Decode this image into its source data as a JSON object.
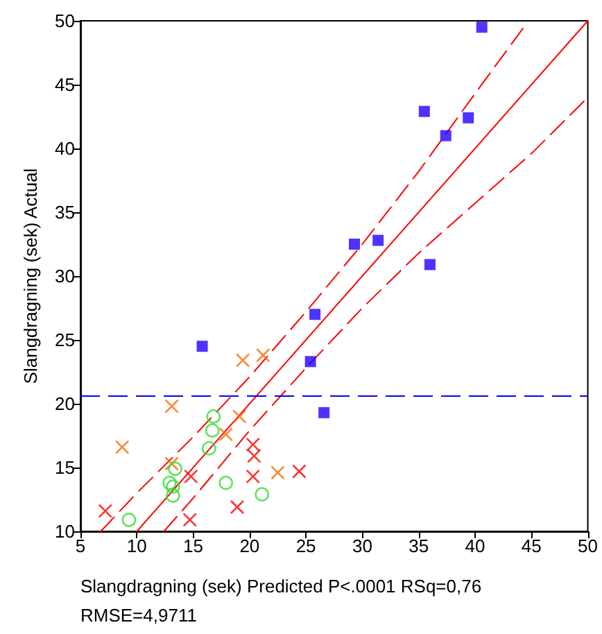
{
  "chart_data": {
    "type": "scatter",
    "xlabel": "Slangdragning (sek) Predicted P<.0001 RSq=0,76 RMSE=4,9711",
    "ylabel": "Slangdragning (sek) Actual",
    "xlim": [
      5,
      50
    ],
    "xticks": [
      5,
      10,
      15,
      20,
      25,
      30,
      35,
      40,
      45,
      50
    ],
    "ylim": [
      10,
      50
    ],
    "yticks": [
      10,
      15,
      20,
      25,
      30,
      35,
      40,
      45,
      50
    ],
    "grid": false,
    "ref_lines": [
      {
        "axis": "y",
        "value": 20.6,
        "color": "#0000ff",
        "line_style": "dashed"
      }
    ],
    "series": [
      {
        "marker": "square",
        "color": "#2200ff",
        "x": [
          40.6,
          35.5,
          39.4,
          37.4,
          29.3,
          31.4,
          36.0,
          25.8,
          25.4,
          26.6,
          15.8
        ],
        "values": [
          49.5,
          42.9,
          42.4,
          41.0,
          32.5,
          32.8,
          30.9,
          27.0,
          23.3,
          19.3,
          24.5
        ]
      },
      {
        "marker": "cross",
        "color": "#ff6600",
        "x": [
          19.4,
          21.2,
          13.1,
          8.7,
          19.1,
          17.9,
          13.1,
          22.5
        ],
        "values": [
          23.4,
          23.8,
          19.8,
          16.6,
          19.0,
          17.6,
          15.3,
          14.6
        ]
      },
      {
        "marker": "circle",
        "color": "#33dd33",
        "x": [
          16.8,
          16.7,
          16.4,
          13.4,
          12.9,
          13.2,
          13.2,
          17.9,
          21.1,
          9.3
        ],
        "values": [
          19.0,
          17.9,
          16.5,
          14.9,
          13.8,
          13.5,
          12.8,
          13.8,
          12.9,
          10.9
        ]
      },
      {
        "marker": "cross",
        "color": "#ff0000",
        "x": [
          20.3,
          20.4,
          20.3,
          14.8,
          24.4,
          7.2,
          18.9,
          14.7
        ],
        "values": [
          16.8,
          15.9,
          14.3,
          14.3,
          14.7,
          11.6,
          11.9,
          10.9
        ]
      },
      {
        "type": "line",
        "color": "#ff0000",
        "line_style": "solid",
        "marker": "none",
        "x": [
          10,
          50
        ],
        "values": [
          10,
          50
        ]
      },
      {
        "type": "line",
        "color": "#ff0000",
        "line_style": "dashed",
        "marker": "none",
        "x": [
          6.8,
          10,
          15,
          20,
          25,
          30,
          35,
          40,
          44.4
        ],
        "values": [
          10,
          13.0,
          17.4,
          22.1,
          27.2,
          32.5,
          38.2,
          44.3,
          49.6
        ]
      },
      {
        "type": "line",
        "color": "#ff0000",
        "line_style": "dashed",
        "marker": "none",
        "x": [
          12.4,
          15,
          20,
          25,
          30,
          35,
          40,
          45,
          50
        ],
        "values": [
          10,
          12.6,
          17.9,
          22.8,
          27.5,
          31.8,
          35.7,
          39.6,
          44
        ]
      }
    ]
  }
}
